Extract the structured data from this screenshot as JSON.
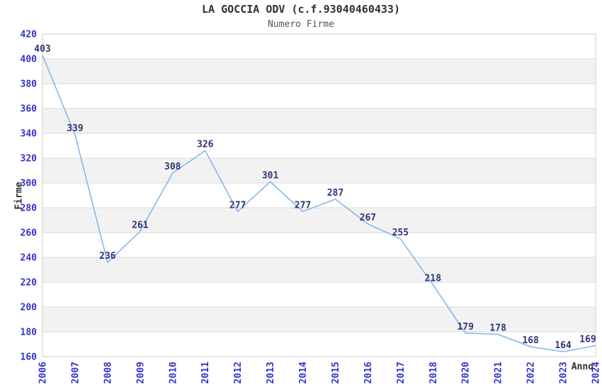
{
  "chart_data": {
    "type": "line",
    "title": "LA GOCCIA ODV (c.f.93040460433)",
    "subtitle": "Numero Firme",
    "xlabel": "Anno",
    "ylabel": "Firme",
    "x": [
      "2006",
      "2007",
      "2008",
      "2009",
      "2010",
      "2011",
      "2012",
      "2013",
      "2014",
      "2015",
      "2016",
      "2017",
      "2018",
      "2020",
      "2021",
      "2022",
      "2023",
      "2024"
    ],
    "values": [
      403,
      339,
      236,
      261,
      308,
      326,
      277,
      301,
      277,
      287,
      267,
      255,
      218,
      179,
      178,
      168,
      164,
      169
    ],
    "ylim": [
      160,
      420
    ],
    "ytick_step": 20,
    "grid": true,
    "alternating_bands": true,
    "legend": false,
    "colors": {
      "line": "#7cb5ec",
      "tick_label": "#3333cc",
      "data_label": "#333377",
      "band": "#f2f2f2",
      "gridline": "#d9d9d9",
      "plot_border": "#cccccc",
      "title": "#303030",
      "subtitle": "#555555",
      "axis_title": "#303030",
      "background": "#ffffff"
    }
  }
}
